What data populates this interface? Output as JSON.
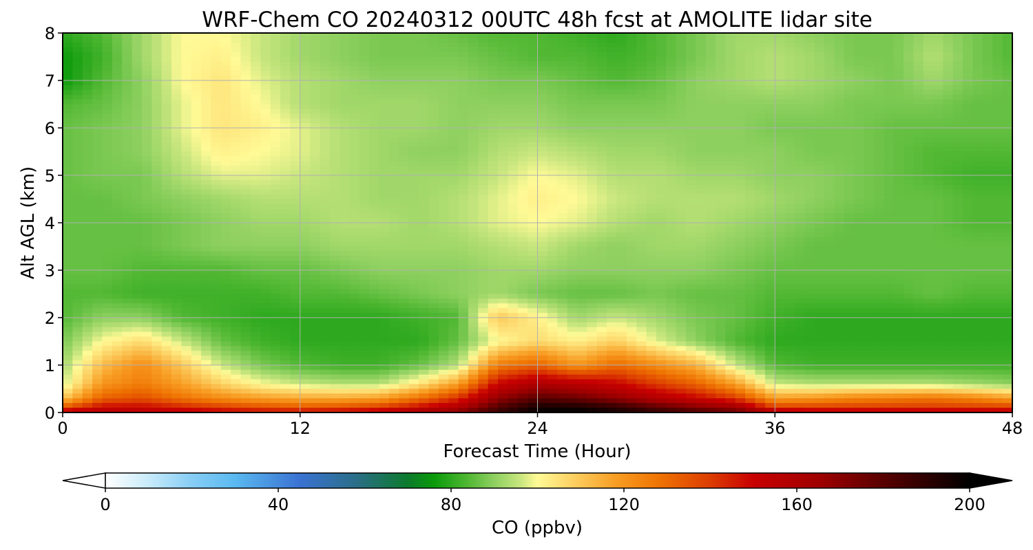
{
  "chart_data": {
    "type": "heatmap",
    "title": "WRF-Chem CO  20240312 00UTC 48h fcst at AMOLITE lidar site",
    "xlabel": "Forecast Time (Hour)",
    "ylabel": "Alt AGL (km)",
    "xlim": [
      0,
      48
    ],
    "ylim": [
      0,
      8
    ],
    "xticks": [
      "0",
      "12",
      "24",
      "36",
      "48"
    ],
    "xtick_values": [
      0,
      12,
      24,
      36,
      48
    ],
    "yticks": [
      "0",
      "1",
      "2",
      "3",
      "4",
      "5",
      "6",
      "7",
      "8"
    ],
    "ytick_values": [
      0,
      1,
      2,
      3,
      4,
      5,
      6,
      7,
      8
    ],
    "grid": true,
    "colorbar": {
      "label": "CO  (ppbv)",
      "ticks": [
        "0",
        "40",
        "80",
        "120",
        "160",
        "200"
      ],
      "tick_values": [
        0,
        40,
        80,
        120,
        160,
        200
      ],
      "range": [
        0,
        200
      ],
      "extend": "both",
      "stops": [
        [
          0,
          "#ffffff"
        ],
        [
          10,
          "#c8ebfa"
        ],
        [
          20,
          "#87cdf5"
        ],
        [
          30,
          "#5ab9f0"
        ],
        [
          45,
          "#3a72d2"
        ],
        [
          58,
          "#2a6e88"
        ],
        [
          70,
          "#0c7a2c"
        ],
        [
          76,
          "#0a9a0a"
        ],
        [
          84,
          "#52b834"
        ],
        [
          90,
          "#8ed060"
        ],
        [
          96,
          "#c8e67e"
        ],
        [
          100,
          "#fffa96"
        ],
        [
          108,
          "#fcd164"
        ],
        [
          118,
          "#f89e24"
        ],
        [
          128,
          "#ef7402"
        ],
        [
          140,
          "#dc3c00"
        ],
        [
          150,
          "#c80000"
        ],
        [
          165,
          "#a00000"
        ],
        [
          180,
          "#580000"
        ],
        [
          192,
          "#240000"
        ],
        [
          200,
          "#000000"
        ]
      ]
    },
    "field": {
      "hours": [
        0,
        2,
        4,
        6,
        8,
        10,
        12,
        14,
        16,
        18,
        20,
        22,
        24,
        26,
        28,
        30,
        32,
        34,
        36,
        38,
        40,
        42,
        44,
        46,
        48
      ],
      "altitudes_km": [
        0,
        0.1,
        0.3,
        0.6,
        1.0,
        1.5,
        2.0,
        2.5,
        3.0,
        3.5,
        4.0,
        4.5,
        5.0,
        5.5,
        6.0,
        6.5,
        7.0,
        7.5,
        8.0
      ],
      "values": [
        [
          160,
          158,
          156,
          156,
          154,
          152,
          152,
          154,
          158,
          165,
          172,
          188,
          200,
          200,
          196,
          190,
          184,
          178,
          162,
          158,
          158,
          158,
          158,
          158,
          158
        ],
        [
          135,
          150,
          150,
          145,
          140,
          136,
          134,
          136,
          140,
          150,
          160,
          182,
          196,
          196,
          190,
          180,
          172,
          166,
          140,
          140,
          140,
          140,
          140,
          140,
          140
        ],
        [
          110,
          132,
          136,
          128,
          122,
          118,
          116,
          116,
          118,
          128,
          142,
          168,
          180,
          176,
          168,
          158,
          150,
          140,
          118,
          120,
          124,
          126,
          128,
          124,
          118
        ],
        [
          96,
          120,
          126,
          118,
          108,
          100,
          96,
          94,
          94,
          104,
          118,
          150,
          160,
          156,
          150,
          140,
          132,
          118,
          96,
          94,
          94,
          94,
          94,
          92,
          90
        ],
        [
          92,
          112,
          122,
          110,
          96,
          88,
          84,
          82,
          82,
          86,
          94,
          126,
          132,
          120,
          130,
          122,
          114,
          96,
          84,
          82,
          82,
          82,
          82,
          82,
          82
        ],
        [
          88,
          100,
          106,
          96,
          86,
          82,
          80,
          80,
          80,
          80,
          86,
          100,
          106,
          102,
          108,
          98,
          90,
          84,
          80,
          80,
          80,
          80,
          80,
          80,
          80
        ],
        [
          84,
          90,
          90,
          84,
          82,
          80,
          80,
          80,
          80,
          82,
          84,
          110,
          102,
          92,
          96,
          92,
          88,
          86,
          82,
          80,
          80,
          80,
          80,
          80,
          80
        ],
        [
          84,
          84,
          82,
          82,
          82,
          82,
          84,
          84,
          86,
          88,
          90,
          92,
          88,
          86,
          86,
          88,
          86,
          86,
          84,
          84,
          84,
          84,
          86,
          84,
          84
        ],
        [
          86,
          86,
          84,
          84,
          84,
          86,
          86,
          88,
          90,
          90,
          90,
          92,
          92,
          90,
          90,
          90,
          90,
          88,
          86,
          86,
          86,
          86,
          86,
          86,
          86
        ],
        [
          86,
          86,
          86,
          88,
          90,
          90,
          90,
          92,
          92,
          92,
          92,
          94,
          96,
          92,
          90,
          92,
          92,
          90,
          88,
          86,
          86,
          86,
          86,
          86,
          86
        ],
        [
          86,
          86,
          86,
          88,
          90,
          92,
          92,
          94,
          94,
          92,
          94,
          98,
          100,
          98,
          94,
          92,
          94,
          92,
          90,
          88,
          86,
          86,
          86,
          84,
          84
        ],
        [
          86,
          86,
          88,
          90,
          92,
          94,
          94,
          94,
          92,
          92,
          94,
          98,
          102,
          100,
          96,
          94,
          94,
          94,
          92,
          90,
          88,
          86,
          86,
          84,
          84
        ],
        [
          86,
          88,
          88,
          94,
          98,
          98,
          96,
          94,
          92,
          92,
          92,
          96,
          100,
          98,
          94,
          94,
          92,
          92,
          90,
          90,
          88,
          86,
          84,
          82,
          82
        ],
        [
          86,
          88,
          90,
          96,
          102,
          100,
          98,
          94,
          92,
          90,
          90,
          94,
          96,
          94,
          92,
          92,
          90,
          90,
          90,
          88,
          88,
          86,
          84,
          84,
          84
        ],
        [
          86,
          88,
          90,
          98,
          104,
          102,
          98,
          94,
          92,
          92,
          90,
          92,
          92,
          90,
          90,
          90,
          90,
          90,
          88,
          88,
          88,
          86,
          86,
          86,
          86
        ],
        [
          84,
          86,
          90,
          98,
          104,
          100,
          94,
          92,
          92,
          92,
          90,
          90,
          90,
          88,
          88,
          88,
          90,
          90,
          90,
          90,
          88,
          88,
          88,
          86,
          86
        ],
        [
          76,
          84,
          90,
          100,
          104,
          98,
          94,
          92,
          90,
          90,
          90,
          88,
          88,
          86,
          84,
          86,
          90,
          92,
          94,
          92,
          90,
          88,
          92,
          88,
          86
        ],
        [
          76,
          82,
          92,
          100,
          102,
          96,
          92,
          90,
          88,
          88,
          88,
          86,
          84,
          84,
          82,
          84,
          88,
          92,
          94,
          92,
          88,
          88,
          94,
          88,
          84
        ],
        [
          80,
          84,
          92,
          100,
          100,
          96,
          92,
          90,
          88,
          88,
          86,
          84,
          84,
          82,
          80,
          84,
          88,
          92,
          92,
          90,
          88,
          88,
          92,
          88,
          84
        ]
      ]
    }
  }
}
